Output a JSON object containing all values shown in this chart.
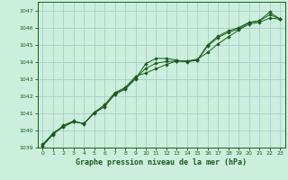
{
  "title": "Graphe pression niveau de la mer (hPa)",
  "bg_color": "#cceedd",
  "grid_color": "#aacccc",
  "line_color": "#1a5c1a",
  "marker_color": "#1a5c1a",
  "xlim": [
    -0.5,
    23.5
  ],
  "ylim": [
    1039,
    1047.5
  ],
  "yticks": [
    1039,
    1040,
    1041,
    1042,
    1043,
    1044,
    1045,
    1046,
    1047
  ],
  "xticks": [
    0,
    1,
    2,
    3,
    4,
    5,
    6,
    7,
    8,
    9,
    10,
    11,
    12,
    13,
    14,
    15,
    16,
    17,
    18,
    19,
    20,
    21,
    22,
    23
  ],
  "series1": [
    1039.2,
    1039.8,
    1040.2,
    1040.5,
    1040.4,
    1041.0,
    1041.4,
    1042.1,
    1042.4,
    1043.0,
    1043.9,
    1044.2,
    1044.2,
    1044.1,
    1044.0,
    1044.1,
    1045.0,
    1045.5,
    1045.8,
    1046.0,
    1046.3,
    1046.4,
    1046.9,
    1046.5
  ],
  "series2": [
    1039.1,
    1039.75,
    1040.3,
    1040.55,
    1040.38,
    1041.05,
    1041.5,
    1042.2,
    1042.5,
    1043.15,
    1043.35,
    1043.6,
    1043.85,
    1044.05,
    1044.05,
    1044.15,
    1044.55,
    1045.05,
    1045.45,
    1045.85,
    1046.2,
    1046.3,
    1046.55,
    1046.5
  ],
  "series3": [
    1039.1,
    1039.85,
    1040.25,
    1040.52,
    1040.4,
    1041.05,
    1041.38,
    1042.15,
    1042.45,
    1043.05,
    1043.62,
    1043.92,
    1044.02,
    1044.05,
    1044.02,
    1044.1,
    1044.92,
    1045.42,
    1045.72,
    1045.92,
    1046.28,
    1046.38,
    1046.75,
    1046.5
  ]
}
